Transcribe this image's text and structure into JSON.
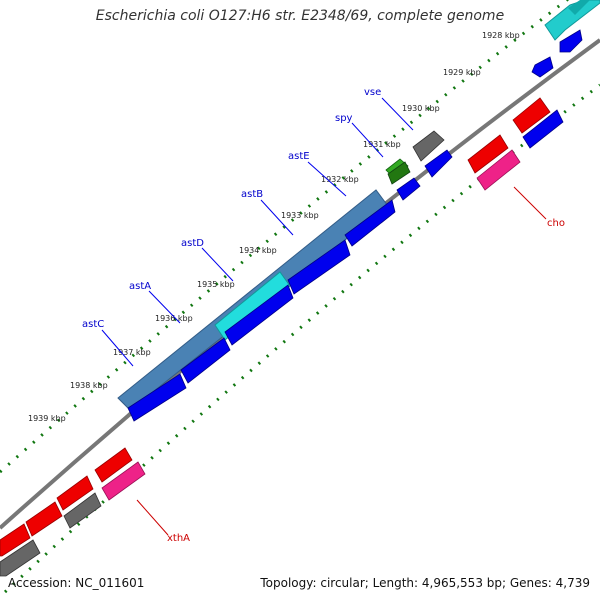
{
  "title": "Escherichia coli O127:H6 str. E2348/69, complete genome",
  "footer": {
    "accession": "Accession: NC_011601",
    "summary": "Topology: circular; Length: 4,965,553 bp; Genes: 4,739"
  },
  "ticks": [
    "1928 kbp",
    "1929 kbp",
    "1930 kbp",
    "1931 kbp",
    "1932 kbp",
    "1933 kbp",
    "1934 kbp",
    "1935 kbp",
    "1936 kbp",
    "1937 kbp",
    "1938 kbp",
    "1939 kbp"
  ],
  "gene_labels": {
    "vse": "vse",
    "spy": "spy",
    "astE": "astE",
    "astB": "astB",
    "astD": "astD",
    "astA": "astA",
    "astC": "astC",
    "cho": "cho",
    "xthA": "xthA"
  },
  "colors": {
    "blue": "#0000ee",
    "red": "#ee0000",
    "gray": "#666666",
    "cyan": "#22cccc",
    "pink": "#ee2288",
    "steel": "#4a82b4",
    "green": "#33aa22",
    "tick_green": "#117711",
    "backbone": "#777777"
  }
}
